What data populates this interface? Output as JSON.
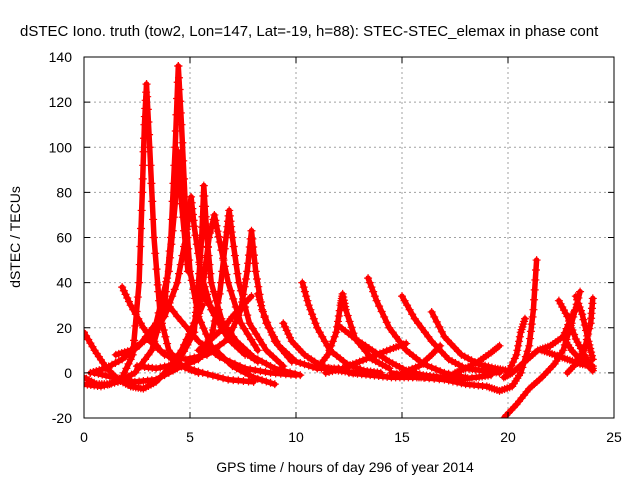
{
  "chart_data": {
    "type": "scatter",
    "title": "dSTEC Iono. truth (tow2, Lon=147, Lat=-19, h=88): STEC-STEC_elemax in phase cont",
    "xlabel": "GPS time / hours of day 296 of year 2014",
    "ylabel": "dSTEC  / TECUs",
    "xlim": [
      0,
      25
    ],
    "ylim": [
      -20,
      140
    ],
    "xticks": [
      0,
      5,
      10,
      15,
      20,
      25
    ],
    "yticks": [
      -20,
      0,
      20,
      40,
      60,
      80,
      100,
      120,
      140
    ],
    "xtick_labels": [
      "0",
      "5",
      "10",
      "15",
      "20",
      "25"
    ],
    "ytick_labels": [
      "-20",
      "0",
      "20",
      "40",
      "60",
      "80",
      "100",
      "120",
      "140"
    ],
    "grid": true,
    "marker": "+",
    "color": "#ff0000",
    "series": [
      {
        "points": [
          [
            0.0,
            18
          ],
          [
            0.5,
            10
          ],
          [
            1.0,
            3
          ],
          [
            1.6,
            -3
          ],
          [
            2.2,
            -6
          ],
          [
            2.8,
            -7
          ],
          [
            3.4,
            -4
          ],
          [
            4.0,
            2
          ],
          [
            4.8,
            12
          ],
          [
            5.6,
            30
          ]
        ]
      },
      {
        "points": [
          [
            0.0,
            -2
          ],
          [
            0.6,
            -5
          ],
          [
            1.2,
            -5
          ],
          [
            1.8,
            -2
          ],
          [
            2.3,
            8
          ],
          [
            2.6,
            40
          ],
          [
            2.75,
            80
          ],
          [
            2.85,
            110
          ],
          [
            2.95,
            128
          ]
        ]
      },
      {
        "points": [
          [
            2.95,
            128
          ],
          [
            3.1,
            100
          ],
          [
            3.3,
            60
          ],
          [
            3.6,
            25
          ],
          [
            4.0,
            10
          ],
          [
            4.6,
            3
          ],
          [
            5.4,
            0
          ]
        ]
      },
      {
        "points": [
          [
            0.0,
            -5
          ],
          [
            0.8,
            -6
          ],
          [
            1.6,
            -4
          ],
          [
            2.4,
            0
          ],
          [
            3.2,
            10
          ],
          [
            3.8,
            30
          ],
          [
            4.1,
            60
          ],
          [
            4.3,
            100
          ],
          [
            4.45,
            136
          ]
        ]
      },
      {
        "points": [
          [
            4.45,
            136
          ],
          [
            4.6,
            110
          ],
          [
            4.8,
            70
          ],
          [
            5.0,
            45
          ],
          [
            5.4,
            25
          ],
          [
            6.0,
            12
          ],
          [
            7.0,
            3
          ],
          [
            8.0,
            -2
          ],
          [
            9.0,
            -5
          ]
        ]
      },
      {
        "points": [
          [
            0.3,
            0
          ],
          [
            1.0,
            2
          ],
          [
            1.8,
            6
          ],
          [
            2.6,
            12
          ],
          [
            3.4,
            22
          ],
          [
            4.0,
            45
          ],
          [
            4.3,
            75
          ],
          [
            4.45,
            98
          ],
          [
            4.6,
            75
          ],
          [
            4.9,
            45
          ]
        ]
      },
      {
        "points": [
          [
            1.5,
            8
          ],
          [
            2.2,
            10
          ],
          [
            3.0,
            15
          ],
          [
            3.8,
            25
          ],
          [
            4.4,
            40
          ],
          [
            4.8,
            60
          ],
          [
            5.05,
            78
          ],
          [
            5.2,
            65
          ],
          [
            5.5,
            45
          ],
          [
            6.0,
            28
          ],
          [
            6.8,
            15
          ],
          [
            7.6,
            8
          ]
        ]
      },
      {
        "points": [
          [
            2.5,
            3
          ],
          [
            3.4,
            2
          ],
          [
            4.4,
            4
          ],
          [
            5.2,
            18
          ],
          [
            5.4,
            40
          ],
          [
            5.55,
            60
          ],
          [
            5.65,
            83
          ],
          [
            5.8,
            60
          ],
          [
            6.0,
            40
          ],
          [
            6.6,
            20
          ],
          [
            7.4,
            10
          ],
          [
            8.2,
            5
          ]
        ]
      },
      {
        "points": [
          [
            1.8,
            38
          ],
          [
            2.2,
            30
          ],
          [
            2.8,
            20
          ],
          [
            3.6,
            10
          ],
          [
            4.6,
            3
          ],
          [
            5.6,
            0
          ],
          [
            6.8,
            -3
          ],
          [
            8.0,
            -4
          ]
        ]
      },
      {
        "points": [
          [
            0.5,
            0
          ],
          [
            1.4,
            -2
          ],
          [
            2.4,
            -4
          ],
          [
            3.4,
            -3
          ],
          [
            4.4,
            2
          ],
          [
            5.4,
            6
          ],
          [
            6.0,
            15
          ],
          [
            6.4,
            35
          ],
          [
            6.7,
            60
          ],
          [
            6.85,
            72
          ],
          [
            7.0,
            60
          ],
          [
            7.3,
            40
          ],
          [
            7.8,
            22
          ],
          [
            8.6,
            10
          ],
          [
            9.4,
            3
          ]
        ]
      },
      {
        "points": [
          [
            3.0,
            15
          ],
          [
            3.8,
            8
          ],
          [
            4.8,
            6
          ],
          [
            5.8,
            8
          ],
          [
            6.8,
            15
          ],
          [
            7.4,
            28
          ],
          [
            7.7,
            45
          ],
          [
            7.9,
            63
          ],
          [
            8.1,
            45
          ],
          [
            8.4,
            28
          ],
          [
            9.0,
            14
          ],
          [
            9.8,
            5
          ]
        ]
      },
      {
        "points": [
          [
            4.0,
            2
          ],
          [
            4.6,
            10
          ],
          [
            5.2,
            22
          ],
          [
            5.6,
            38
          ],
          [
            5.9,
            60
          ],
          [
            6.15,
            70
          ],
          [
            6.4,
            58
          ],
          [
            6.8,
            40
          ],
          [
            7.4,
            22
          ],
          [
            8.2,
            10
          ]
        ]
      },
      {
        "points": [
          [
            5.4,
            10
          ],
          [
            6.0,
            15
          ],
          [
            6.6,
            20
          ],
          [
            7.0,
            25
          ],
          [
            7.5,
            30
          ],
          [
            7.9,
            34
          ]
        ]
      },
      {
        "points": [
          [
            3.5,
            36
          ],
          [
            4.4,
            25
          ],
          [
            5.4,
            14
          ],
          [
            6.4,
            7
          ],
          [
            7.6,
            2
          ],
          [
            8.8,
            0
          ],
          [
            10.0,
            -1
          ]
        ]
      },
      {
        "points": [
          [
            5.6,
            34
          ],
          [
            6.4,
            24
          ],
          [
            7.2,
            14
          ],
          [
            8.0,
            7
          ],
          [
            9.0,
            2
          ],
          [
            10.2,
            -1
          ]
        ]
      },
      {
        "points": [
          [
            8.2,
            35
          ],
          [
            8.6,
            22
          ],
          [
            9.2,
            12
          ],
          [
            10.0,
            5
          ],
          [
            11.0,
            2
          ],
          [
            12.0,
            2
          ]
        ]
      },
      {
        "points": [
          [
            9.4,
            22
          ],
          [
            9.8,
            14
          ],
          [
            10.4,
            8
          ],
          [
            11.2,
            3
          ],
          [
            12.0,
            1
          ],
          [
            12.8,
            0
          ]
        ]
      },
      {
        "points": [
          [
            10.3,
            40
          ],
          [
            10.6,
            30
          ],
          [
            11.0,
            20
          ],
          [
            11.6,
            10
          ],
          [
            12.4,
            4
          ],
          [
            13.2,
            1
          ],
          [
            14.0,
            0
          ]
        ]
      },
      {
        "points": [
          [
            11.0,
            2
          ],
          [
            11.5,
            8
          ],
          [
            11.9,
            18
          ],
          [
            12.1,
            30
          ],
          [
            12.2,
            35
          ],
          [
            12.35,
            28
          ],
          [
            12.8,
            15
          ],
          [
            13.6,
            6
          ],
          [
            14.4,
            2
          ]
        ]
      },
      {
        "points": [
          [
            12.0,
            21
          ],
          [
            12.8,
            15
          ],
          [
            13.6,
            10
          ],
          [
            14.4,
            5
          ],
          [
            15.2,
            1
          ],
          [
            16.0,
            -1
          ],
          [
            16.8,
            -2
          ],
          [
            17.6,
            -2
          ]
        ]
      },
      {
        "points": [
          [
            11.4,
            0
          ],
          [
            12.2,
            2
          ],
          [
            13.0,
            5
          ],
          [
            13.8,
            8
          ],
          [
            14.6,
            11
          ],
          [
            15.2,
            13
          ]
        ]
      },
      {
        "points": [
          [
            13.4,
            42
          ],
          [
            13.8,
            32
          ],
          [
            14.4,
            20
          ],
          [
            15.2,
            10
          ],
          [
            16.0,
            4
          ],
          [
            17.0,
            0
          ],
          [
            18.0,
            -2
          ]
        ]
      },
      {
        "points": [
          [
            15.0,
            34
          ],
          [
            15.6,
            24
          ],
          [
            16.4,
            14
          ],
          [
            17.2,
            6
          ],
          [
            18.0,
            2
          ],
          [
            18.8,
            1
          ],
          [
            19.6,
            0
          ]
        ]
      },
      {
        "points": [
          [
            16.4,
            27
          ],
          [
            17.0,
            16
          ],
          [
            17.8,
            8
          ],
          [
            18.6,
            4
          ],
          [
            19.4,
            2
          ],
          [
            20.0,
            1
          ]
        ]
      },
      {
        "points": [
          [
            15.0,
            0
          ],
          [
            15.8,
            3
          ],
          [
            16.4,
            8
          ],
          [
            16.8,
            12
          ]
        ]
      },
      {
        "points": [
          [
            12.5,
            0
          ],
          [
            13.5,
            -1
          ],
          [
            14.5,
            -2
          ],
          [
            15.5,
            -2
          ],
          [
            16.5,
            -2
          ],
          [
            17.5,
            -3
          ],
          [
            18.5,
            -2
          ],
          [
            19.2,
            -1
          ]
        ]
      },
      {
        "points": [
          [
            17.5,
            0
          ],
          [
            18.0,
            2
          ],
          [
            18.6,
            5
          ],
          [
            19.2,
            9
          ],
          [
            19.6,
            12
          ]
        ]
      },
      {
        "points": [
          [
            14.5,
            0
          ],
          [
            15.8,
            -2
          ],
          [
            17.0,
            -3
          ],
          [
            18.0,
            -5
          ],
          [
            19.0,
            -6
          ],
          [
            19.6,
            -8
          ],
          [
            20.2,
            -6
          ],
          [
            20.6,
            0
          ],
          [
            21.0,
            12
          ],
          [
            21.2,
            28
          ],
          [
            21.35,
            50
          ]
        ]
      },
      {
        "points": [
          [
            19.8,
            -20
          ],
          [
            20.4,
            -14
          ],
          [
            21.0,
            -7
          ],
          [
            21.6,
            -2
          ],
          [
            22.2,
            4
          ],
          [
            22.6,
            10
          ],
          [
            23.0,
            22
          ],
          [
            23.4,
            36
          ]
        ]
      },
      {
        "points": [
          [
            19.8,
            -2
          ],
          [
            20.2,
            0
          ],
          [
            20.8,
            5
          ],
          [
            21.4,
            10
          ],
          [
            22.0,
            12
          ],
          [
            22.6,
            16
          ],
          [
            23.0,
            25
          ],
          [
            23.3,
            30
          ]
        ]
      },
      {
        "points": [
          [
            20.0,
            0
          ],
          [
            20.4,
            8
          ],
          [
            20.6,
            18
          ],
          [
            20.8,
            24
          ]
        ]
      },
      {
        "points": [
          [
            22.4,
            32
          ],
          [
            22.8,
            25
          ],
          [
            23.2,
            15
          ],
          [
            23.6,
            8
          ],
          [
            24.0,
            2
          ]
        ]
      },
      {
        "points": [
          [
            22.6,
            16
          ],
          [
            23.0,
            10
          ],
          [
            23.4,
            6
          ],
          [
            23.8,
            3
          ],
          [
            24.0,
            1
          ]
        ]
      },
      {
        "points": [
          [
            21.6,
            10
          ],
          [
            22.2,
            8
          ],
          [
            22.8,
            6
          ],
          [
            23.4,
            4
          ],
          [
            24.0,
            3
          ]
        ]
      },
      {
        "points": [
          [
            22.8,
            0
          ],
          [
            23.2,
            4
          ],
          [
            23.6,
            10
          ],
          [
            23.9,
            22
          ],
          [
            24.0,
            33
          ]
        ]
      },
      {
        "points": [
          [
            23.2,
            34
          ],
          [
            23.5,
            26
          ],
          [
            23.8,
            14
          ],
          [
            24.0,
            6
          ]
        ]
      }
    ]
  }
}
